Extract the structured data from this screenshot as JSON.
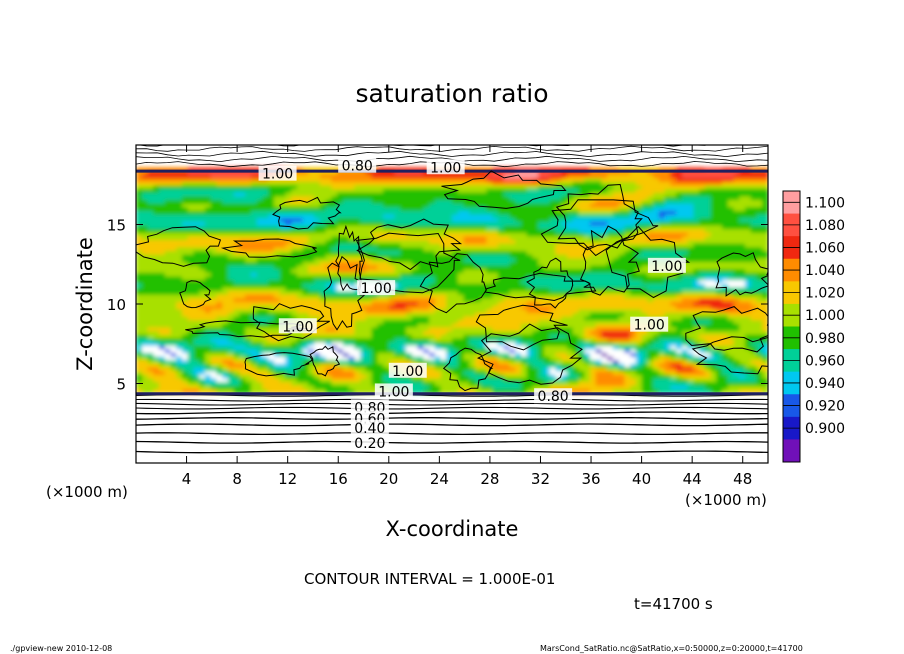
{
  "chart_data": {
    "type": "heatmap",
    "title": "saturation ratio",
    "xlabel": "X-coordinate",
    "ylabel": "Z-coordinate",
    "x_unit_label": "(×1000 m)",
    "x_unit_label_right": "(×1000 m)",
    "xlim": [
      0,
      50
    ],
    "ylim": [
      0,
      20
    ],
    "x_ticks": [
      4,
      8,
      12,
      16,
      20,
      24,
      28,
      32,
      36,
      40,
      44,
      48
    ],
    "y_ticks": [
      5,
      10,
      15
    ],
    "colorbar": {
      "levels": [
        "1.100",
        "1.080",
        "1.060",
        "1.040",
        "1.020",
        "1.000",
        "0.980",
        "0.960",
        "0.940",
        "0.920",
        "0.900"
      ],
      "colors": [
        "#ff9ea0",
        "#ff5040",
        "#f02810",
        "#ff8c00",
        "#f8c800",
        "#a8e000",
        "#20c000",
        "#00d098",
        "#00c8f0",
        "#1858e8",
        "#1818c8",
        "#7010b8"
      ]
    },
    "contour_labels": [
      "0.80",
      "1.00",
      "1.00",
      "1.00",
      "1.00",
      "1.00",
      "1.00",
      "1.00",
      "1.00",
      "0.80",
      "0.80",
      "0.60",
      "0.40",
      "0.20"
    ],
    "contour_interval": "CONTOUR INTERVAL = 1.000E-01",
    "time_label": "t=41700 s",
    "footer_left": "./gpview-new   2010-12-08",
    "footer_right": "MarsCond_SatRatio.nc@SatRatio,x=0:50000,z=0:20000,t=41700"
  }
}
